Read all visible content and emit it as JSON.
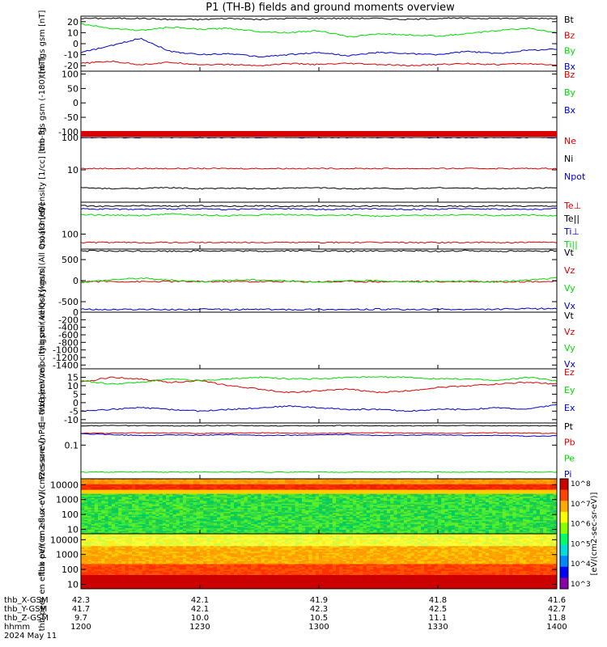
{
  "title": "P1 (TH-B) fields and ground moments overview",
  "colors": {
    "black": "#000000",
    "red": "#dd0000",
    "green": "#00dd00",
    "blue": "#0000cc"
  },
  "colorbar_title": "[eV/(cm2-sec-sr-eV)]",
  "colorbar_labels": [
    "10^8",
    "10^7",
    "10^6",
    "10^5",
    "10^4",
    "10^3"
  ],
  "footer": {
    "rows": [
      {
        "label": "thb_X-GSM",
        "values": [
          "42.3",
          "42.1",
          "41.9",
          "41.8",
          "41.6"
        ]
      },
      {
        "label": "thb_Y-GSM",
        "values": [
          "41.7",
          "42.1",
          "42.3",
          "42.5",
          "42.7"
        ]
      },
      {
        "label": "thb_Z-GSM",
        "values": [
          "9.7",
          "10.0",
          "10.5",
          "11.1",
          "11.8"
        ]
      },
      {
        "label": "hhmm",
        "values": [
          "1200",
          "1230",
          "1300",
          "1330",
          "1400"
        ]
      }
    ],
    "date": "2024 May 11"
  },
  "chart_data": [
    {
      "type": "line",
      "ylabel": "thb fgs gsm [nT]",
      "yticks": [
        "20",
        "10",
        "0",
        "-10",
        "-20"
      ],
      "ylim": [
        -25,
        25
      ],
      "series": [
        {
          "name": "Bt",
          "color": "black",
          "values": [
            23,
            23,
            23,
            22,
            22,
            23,
            22,
            23,
            23,
            23,
            23,
            22,
            23,
            23,
            23,
            23,
            23
          ]
        },
        {
          "name": "Bz",
          "color": "red",
          "values": [
            -18,
            -16,
            -19,
            -17,
            -19,
            -19,
            -20,
            -18,
            -19,
            -18,
            -19,
            -20,
            -19,
            -18,
            -19,
            -18,
            -20
          ]
        },
        {
          "name": "By",
          "color": "green",
          "values": [
            18,
            14,
            12,
            15,
            13,
            14,
            11,
            10,
            12,
            6,
            9,
            8,
            7,
            9,
            12,
            14,
            10
          ]
        },
        {
          "name": "Bx",
          "color": "blue",
          "values": [
            -8,
            -2,
            5,
            -7,
            -10,
            -9,
            -12,
            -10,
            -8,
            -11,
            -8,
            -9,
            -10,
            -7,
            -9,
            -6,
            -5
          ]
        }
      ]
    },
    {
      "type": "line",
      "ylabel": "thb fgs gsm (-180) [nT]",
      "yticks": [
        "100",
        "50",
        "0",
        "-50",
        "-100"
      ],
      "ylim": [
        -120,
        110
      ],
      "series": [
        {
          "name": "Bz",
          "color": "red",
          "values": []
        },
        {
          "name": "By",
          "color": "green",
          "values": []
        },
        {
          "name": "Bx",
          "color": "blue",
          "values": []
        }
      ]
    },
    {
      "type": "line",
      "ylabel": "Density [1/cc] [cm-3]",
      "yticks": [
        "100",
        "10"
      ],
      "ylim": [
        1,
        100
      ],
      "series": [
        {
          "name": "Ne",
          "color": "red",
          "values": [
            11,
            11,
            11,
            11,
            11,
            11,
            11,
            11,
            11,
            11,
            11,
            11,
            11,
            11,
            11,
            11,
            11
          ]
        },
        {
          "name": "Ni",
          "color": "black",
          "values": [
            2.8,
            2.6,
            2.7,
            2.8,
            2.6,
            2.7,
            2.6,
            2.7,
            2.8,
            2.6,
            2.7,
            2.6,
            2.8,
            2.7,
            2.6,
            2.7,
            2.8
          ]
        },
        {
          "name": "Npot",
          "color": "blue",
          "values": [
            100,
            100,
            100,
            100,
            100,
            100,
            100,
            100,
            100,
            100,
            100,
            100,
            100,
            100,
            100,
            100,
            100
          ]
        }
      ]
    },
    {
      "type": "line",
      "ylabel": "moat3 [eV]",
      "yticks": [
        "100"
      ],
      "ylim": [
        40,
        700
      ],
      "series": [
        {
          "name": "Te⊥",
          "color": "red",
          "values": [
            60,
            60,
            60,
            60,
            60,
            60,
            60,
            60,
            60,
            60,
            60,
            60,
            60,
            60,
            60,
            60,
            60
          ]
        },
        {
          "name": "Te||",
          "color": "black",
          "values": [
            560,
            540,
            560,
            550,
            560,
            550,
            560,
            540,
            550,
            560,
            550,
            560,
            550,
            540,
            560,
            550,
            560
          ]
        },
        {
          "name": "Ti⊥",
          "color": "blue",
          "values": [
            470,
            460,
            450,
            470,
            460,
            450,
            460,
            470,
            450,
            460,
            470,
            450,
            460,
            470,
            460,
            450,
            470
          ]
        },
        {
          "name": "Ti||",
          "color": "green",
          "values": [
            330,
            320,
            310,
            340,
            320,
            310,
            320,
            330,
            310,
            320,
            300,
            310,
            320,
            330,
            310,
            320,
            300
          ]
        }
      ]
    },
    {
      "type": "line",
      "ylabel": "thb peir velocity gsm (All Qs) [km/s]",
      "yticks": [
        "500",
        "0",
        "-500"
      ],
      "ylim": [
        -750,
        750
      ],
      "series": [
        {
          "name": "Vt",
          "color": "black",
          "values": [
            710,
            700,
            705,
            700,
            710,
            705,
            700,
            710,
            705,
            700,
            710,
            705,
            700,
            710,
            705,
            700,
            710
          ]
        },
        {
          "name": "Vz",
          "color": "red",
          "values": [
            -20,
            -20,
            -25,
            -20,
            -25,
            -20,
            -25,
            -20,
            -25,
            -20,
            -25,
            -20,
            -25,
            -20,
            -25,
            -20,
            -20
          ]
        },
        {
          "name": "Vy",
          "color": "green",
          "values": [
            -40,
            20,
            60,
            10,
            -20,
            10,
            20,
            -10,
            -30,
            -10,
            0,
            -30,
            -20,
            -10,
            -30,
            10,
            60
          ]
        },
        {
          "name": "Vx",
          "color": "blue",
          "values": [
            -680,
            -690,
            -680,
            -690,
            -680,
            -690,
            -680,
            -690,
            -680,
            -690,
            -680,
            -690,
            -680,
            -690,
            -680,
            -670,
            -660
          ]
        }
      ]
    },
    {
      "type": "line",
      "ylabel": "thb peer velocity gsm (All Qs) [km/s]",
      "yticks": [
        "0",
        "-200",
        "-400",
        "-600",
        "-800",
        "-1000",
        "-1200",
        "-1400"
      ],
      "ylim": [
        -1500,
        0
      ],
      "series": [
        {
          "name": "Vt",
          "color": "black",
          "values": []
        },
        {
          "name": "Vz",
          "color": "red",
          "values": []
        },
        {
          "name": "Vy",
          "color": "green",
          "values": []
        },
        {
          "name": "Vx",
          "color": "blue",
          "values": []
        }
      ]
    },
    {
      "type": "line",
      "ylabel": "E=-VxB [mV/m]",
      "yticks": [
        "15",
        "10",
        "5",
        "0",
        "-5",
        "-10"
      ],
      "ylim": [
        -12,
        20
      ],
      "series": [
        {
          "name": "Ez",
          "color": "red",
          "values": [
            12,
            15,
            14,
            12,
            13,
            10,
            8,
            6,
            7,
            8,
            6,
            7,
            9,
            10,
            11,
            12,
            11
          ]
        },
        {
          "name": "Ey",
          "color": "green",
          "values": [
            13,
            11,
            12,
            14,
            13,
            14,
            15,
            14,
            14,
            15,
            15,
            15,
            14,
            14,
            13,
            15,
            13
          ]
        },
        {
          "name": "Ex",
          "color": "blue",
          "values": [
            -5,
            -4,
            -3,
            -4,
            -5,
            -4,
            -3,
            -2,
            -3,
            -4,
            -4,
            -5,
            -4,
            -4,
            -3,
            -4,
            -1
          ]
        }
      ]
    },
    {
      "type": "line",
      "ylabel": "Pressure [nPa]",
      "yticks": [
        "0.1"
      ],
      "ylim": [
        0.003,
        1
      ],
      "series": [
        {
          "name": "Pt",
          "color": "black",
          "values": [
            0.75,
            0.76,
            0.75,
            0.74,
            0.75,
            0.76,
            0.75,
            0.74,
            0.75,
            0.76,
            0.75,
            0.74,
            0.75,
            0.76,
            0.75,
            0.74,
            0.75
          ]
        },
        {
          "name": "Pb",
          "color": "red",
          "values": [
            0.35,
            0.34,
            0.36,
            0.35,
            0.34,
            0.35,
            0.36,
            0.35,
            0.34,
            0.35,
            0.36,
            0.35,
            0.34,
            0.35,
            0.36,
            0.35,
            0.34
          ]
        },
        {
          "name": "Pe",
          "color": "green",
          "values": [
            0.006,
            0.006,
            0.006,
            0.006,
            0.006,
            0.006,
            0.006,
            0.006,
            0.006,
            0.006,
            0.006,
            0.006,
            0.006,
            0.006,
            0.006,
            0.006,
            0.006
          ]
        },
        {
          "name": "Pi",
          "color": "blue",
          "values": [
            0.32,
            0.3,
            0.27,
            0.29,
            0.28,
            0.3,
            0.27,
            0.28,
            0.29,
            0.3,
            0.27,
            0.28,
            0.29,
            0.27,
            0.28,
            0.25,
            0.26
          ]
        }
      ]
    },
    {
      "type": "heatmap",
      "ylabel": "thb peir en eflux eV/(cm2-s-sr-eV)",
      "yticks": [
        "10000",
        "1000",
        "100",
        "10"
      ],
      "ylim": [
        5,
        25000
      ]
    },
    {
      "type": "heatmap",
      "ylabel": "thb peer en eflux eV/(cm2-s-sr-eV)",
      "yticks": [
        "10000",
        "1000",
        "100",
        "10"
      ],
      "ylim": [
        5,
        25000
      ]
    }
  ]
}
